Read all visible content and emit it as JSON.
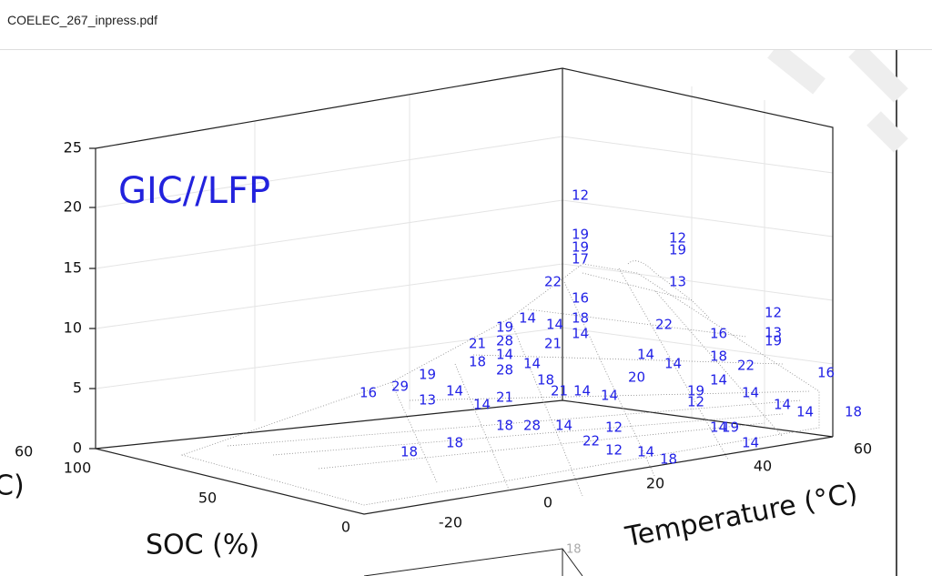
{
  "header": {
    "title": "COELEC_267_inpress.pdf"
  },
  "figure": {
    "label": "GIC//LFP",
    "z_ticks": [
      "0",
      "5",
      "10",
      "15",
      "20",
      "25"
    ],
    "soc_ticks": [
      "100",
      "50",
      "0"
    ],
    "temp_ticks": [
      "-20",
      "0",
      "20",
      "40",
      "60"
    ],
    "soc_label": "SOC (%)",
    "temp_label": "Temperature (°C)",
    "left_partial": [
      "60",
      "C)"
    ],
    "bottom_partial": "18",
    "point_labels": [
      "12",
      "19",
      "19",
      "17",
      "22",
      "16",
      "18",
      "14",
      "21",
      "14",
      "14",
      "19",
      "21",
      "28",
      "14",
      "18",
      "28",
      "14",
      "18",
      "21",
      "14",
      "14",
      "16",
      "29",
      "19",
      "14",
      "13",
      "21",
      "14",
      "18",
      "28",
      "14",
      "22",
      "12",
      "12",
      "18",
      "18",
      "14",
      "18",
      "12",
      "19",
      "13",
      "22",
      "16",
      "18",
      "14",
      "22",
      "19",
      "12",
      "20",
      "14",
      "14",
      "12",
      "13",
      "19",
      "16",
      "14",
      "14",
      "14",
      "18",
      "14",
      "14",
      "19"
    ]
  }
}
